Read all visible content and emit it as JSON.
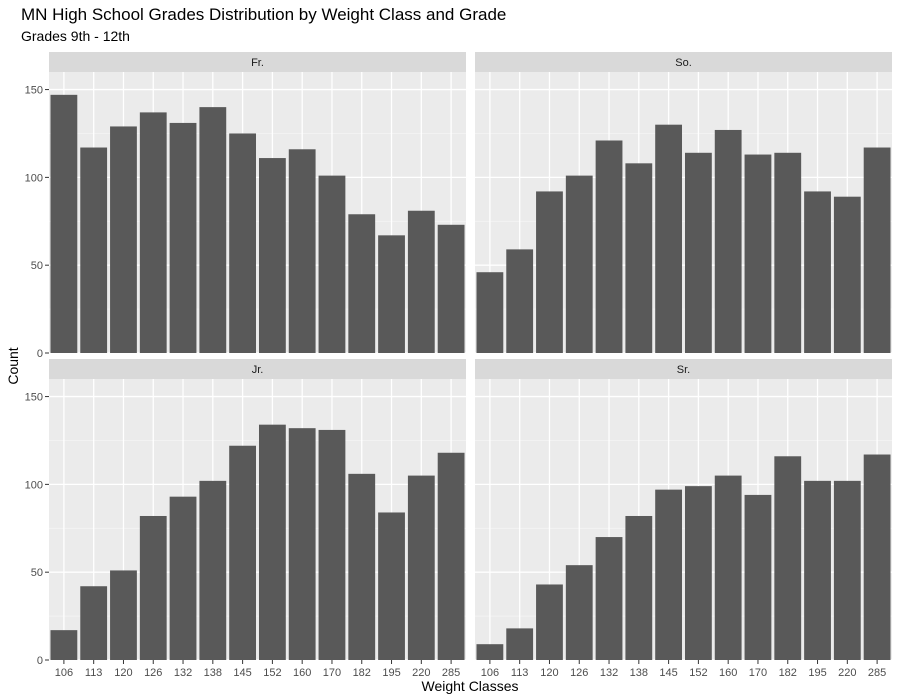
{
  "chart_data": {
    "type": "bar",
    "layout": "facet-grid",
    "facet_columns": 2,
    "title": "MN High School Grades Distribution by Weight Class and Grade",
    "subtitle": "Grades 9th - 12th",
    "xlabel": "Weight Classes",
    "ylabel": "Count",
    "categories": [
      "106",
      "113",
      "120",
      "126",
      "132",
      "138",
      "145",
      "152",
      "160",
      "170",
      "182",
      "195",
      "220",
      "285"
    ],
    "ylim": [
      0,
      160
    ],
    "yticks": [
      0,
      50,
      100,
      150
    ],
    "grid": true,
    "bar_color": "#595959",
    "panel_background": "#ebebeb",
    "strip_background": "#d9d9d9",
    "panels": [
      {
        "label": "Fr.",
        "values": [
          147,
          117,
          129,
          137,
          131,
          140,
          125,
          111,
          116,
          101,
          79,
          67,
          81,
          73
        ]
      },
      {
        "label": "So.",
        "values": [
          46,
          59,
          92,
          101,
          121,
          108,
          130,
          114,
          127,
          113,
          114,
          92,
          89,
          117
        ]
      },
      {
        "label": "Jr.",
        "values": [
          17,
          42,
          51,
          82,
          93,
          102,
          122,
          134,
          132,
          131,
          106,
          84,
          105,
          118
        ]
      },
      {
        "label": "Sr.",
        "values": [
          9,
          18,
          43,
          54,
          70,
          82,
          97,
          99,
          105,
          94,
          116,
          102,
          102,
          117
        ]
      }
    ]
  }
}
